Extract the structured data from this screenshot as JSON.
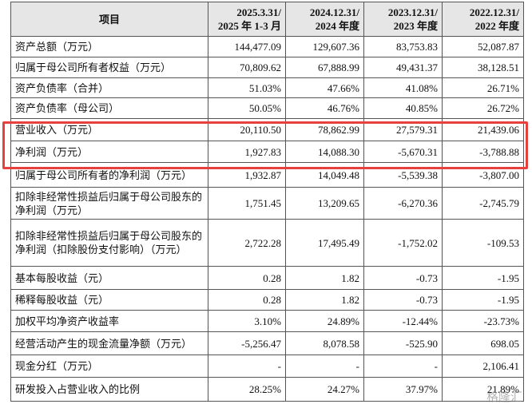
{
  "table": {
    "header": [
      "项目",
      [
        "2025.3.31/",
        "2025 年 1-3 月"
      ],
      [
        "2024.12.31/",
        "2024 年度"
      ],
      [
        "2023.12.31/",
        "2023 年度"
      ],
      [
        "2022.12.31/",
        "2022 年度"
      ]
    ],
    "rows": [
      [
        "资产总额（万元）",
        "144,477.09",
        "129,607.36",
        "83,753.83",
        "52,087.87"
      ],
      [
        "归属于母公司所有者权益（万元）",
        "70,809.62",
        "67,888.99",
        "49,431.37",
        "38,128.51"
      ],
      [
        "资产负债率（合并）",
        "51.03%",
        "47.66%",
        "41.08%",
        "26.71%"
      ],
      [
        "资产负债率（母公司）",
        "50.05%",
        "46.76%",
        "40.85%",
        "26.72%"
      ],
      [
        "营业收入（万元）",
        "20,110.50",
        "78,862.99",
        "27,579.31",
        "21,439.06"
      ],
      [
        "净利润（万元）",
        "1,927.83",
        "14,088.30",
        "-5,670.31",
        "-3,788.88"
      ],
      [
        "归属于母公司所有者的净利润（万元）",
        "1,932.87",
        "14,049.48",
        "-5,539.38",
        "-3,807.00"
      ],
      [
        "扣除非经常性损益后归属于母公司股东的净利润（万元）",
        "1,751.45",
        "13,209.65",
        "-6,270.36",
        "-2,745.79"
      ],
      [
        "扣除非经常性损益后归属于母公司股东的净利润（扣除股份支付影响）（万元）",
        "2,722.28",
        "17,495.49",
        "-1,752.02",
        "-109.53"
      ],
      [
        "基本每股收益（元）",
        "0.28",
        "1.82",
        "-0.73",
        "-1.95"
      ],
      [
        "稀释每股收益（元）",
        "0.28",
        "1.82",
        "-0.73",
        "-1.95"
      ],
      [
        "加权平均净资产收益率",
        "3.10%",
        "24.89%",
        "-12.44%",
        "-23.73%"
      ],
      [
        "经营活动产生的现金流量净额（万元）",
        "-5,256.47",
        "8,078.58",
        "-525.90",
        "698.05"
      ],
      [
        "现金分红（万元）",
        "-",
        "-",
        "-",
        "2,106.41"
      ],
      [
        "研发投入占营业收入的比例",
        "28.25%",
        "24.27%",
        "37.97%",
        "21.89%"
      ]
    ]
  },
  "watermark": "格隆汇"
}
